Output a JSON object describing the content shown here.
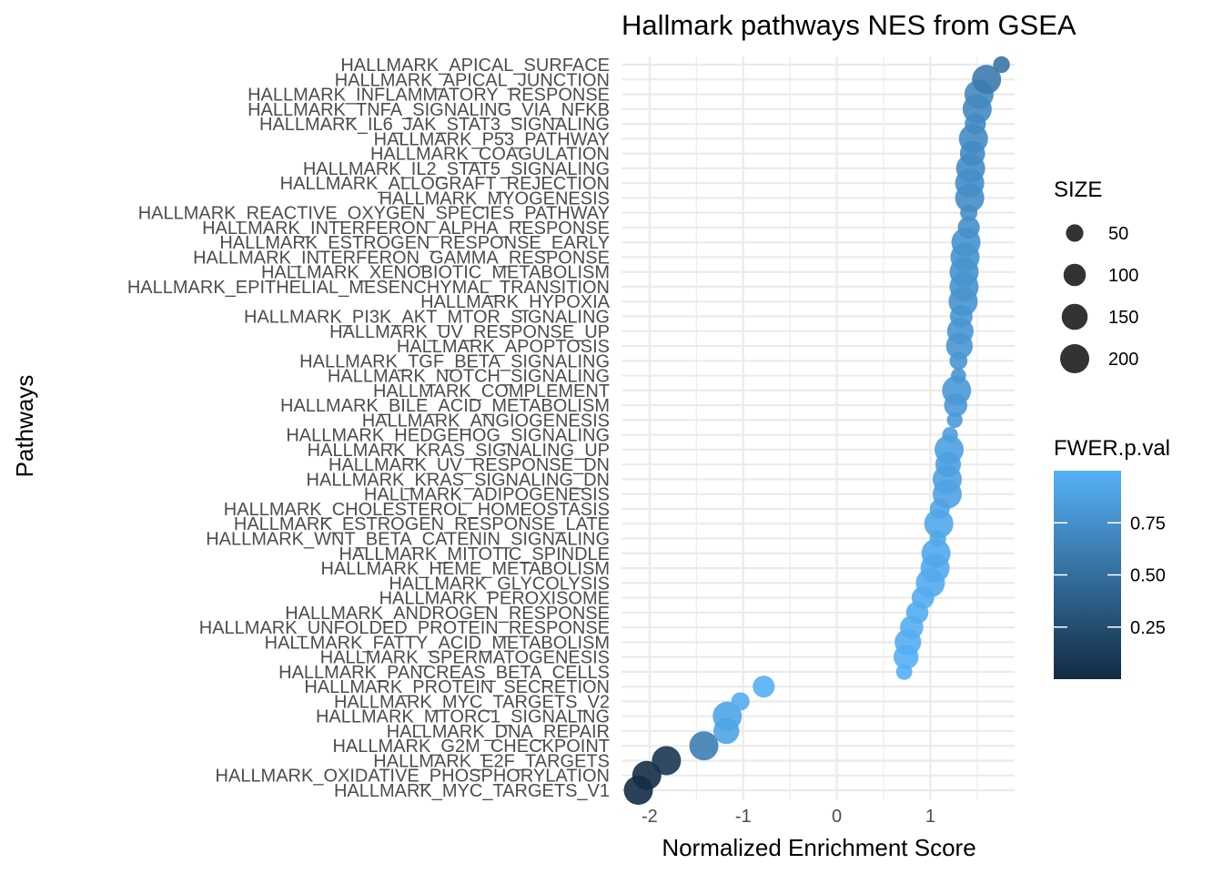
{
  "chart_data": {
    "type": "scatter",
    "title": "Hallmark pathways NES from GSEA",
    "xlabel": "Normalized Enrichment Score",
    "ylabel": "Pathways",
    "xlim": [
      -2.3,
      1.9
    ],
    "xticks": [
      -2,
      -1,
      0,
      1
    ],
    "grid": true,
    "legend_position": "right",
    "size_legend": {
      "title": "SIZE",
      "entries": [
        {
          "label": "50",
          "value": 50
        },
        {
          "label": "100",
          "value": 100
        },
        {
          "label": "150",
          "value": 150
        },
        {
          "label": "200",
          "value": 200
        }
      ]
    },
    "color_legend": {
      "title": "FWER.p.val",
      "range": [
        0,
        1
      ],
      "low_color": "#132B43",
      "high_color": "#56B1F7",
      "ticks": [
        {
          "label": "0.75",
          "value": 0.75
        },
        {
          "label": "0.50",
          "value": 0.5
        },
        {
          "label": "0.25",
          "value": 0.25
        }
      ]
    },
    "points": [
      {
        "pathway": "HALLMARK_APICAL_SURFACE",
        "nes": 1.76,
        "size": 44,
        "fwer": 0.55
      },
      {
        "pathway": "HALLMARK_APICAL_JUNCTION",
        "nes": 1.6,
        "size": 200,
        "fwer": 0.6
      },
      {
        "pathway": "HALLMARK_INFLAMMATORY_RESPONSE",
        "nes": 1.52,
        "size": 200,
        "fwer": 0.7
      },
      {
        "pathway": "HALLMARK_TNFA_SIGNALING_VIA_NFKB",
        "nes": 1.5,
        "size": 200,
        "fwer": 0.7
      },
      {
        "pathway": "HALLMARK_IL6_JAK_STAT3_SIGNALING",
        "nes": 1.48,
        "size": 87,
        "fwer": 0.72
      },
      {
        "pathway": "HALLMARK_P53_PATHWAY",
        "nes": 1.46,
        "size": 200,
        "fwer": 0.72
      },
      {
        "pathway": "HALLMARK_COAGULATION",
        "nes": 1.45,
        "size": 138,
        "fwer": 0.72
      },
      {
        "pathway": "HALLMARK_IL2_STAT5_SIGNALING",
        "nes": 1.43,
        "size": 199,
        "fwer": 0.74
      },
      {
        "pathway": "HALLMARK_ALLOGRAFT_REJECTION",
        "nes": 1.42,
        "size": 200,
        "fwer": 0.74
      },
      {
        "pathway": "HALLMARK_MYOGENESIS",
        "nes": 1.42,
        "size": 200,
        "fwer": 0.74
      },
      {
        "pathway": "HALLMARK_REACTIVE_OXYGEN_SPECIES_PATHWAY",
        "nes": 1.41,
        "size": 48,
        "fwer": 0.75
      },
      {
        "pathway": "HALLMARK_INTERFERON_ALPHA_RESPONSE",
        "nes": 1.41,
        "size": 97,
        "fwer": 0.75
      },
      {
        "pathway": "HALLMARK_ESTROGEN_RESPONSE_EARLY",
        "nes": 1.38,
        "size": 200,
        "fwer": 0.78
      },
      {
        "pathway": "HALLMARK_INTERFERON_GAMMA_RESPONSE",
        "nes": 1.37,
        "size": 200,
        "fwer": 0.78
      },
      {
        "pathway": "HALLMARK_XENOBIOTIC_METABOLISM",
        "nes": 1.36,
        "size": 200,
        "fwer": 0.78
      },
      {
        "pathway": "HALLMARK_EPITHELIAL_MESENCHYMAL_TRANSITION",
        "nes": 1.36,
        "size": 200,
        "fwer": 0.78
      },
      {
        "pathway": "HALLMARK_HYPOXIA",
        "nes": 1.35,
        "size": 200,
        "fwer": 0.78
      },
      {
        "pathway": "HALLMARK_PI3K_AKT_MTOR_SIGNALING",
        "nes": 1.33,
        "size": 105,
        "fwer": 0.8
      },
      {
        "pathway": "HALLMARK_UV_RESPONSE_UP",
        "nes": 1.32,
        "size": 158,
        "fwer": 0.8
      },
      {
        "pathway": "HALLMARK_APOPTOSIS",
        "nes": 1.31,
        "size": 161,
        "fwer": 0.8
      },
      {
        "pathway": "HALLMARK_TGF_BETA_SIGNALING",
        "nes": 1.3,
        "size": 54,
        "fwer": 0.8
      },
      {
        "pathway": "HALLMARK_NOTCH_SIGNALING",
        "nes": 1.3,
        "size": 32,
        "fwer": 0.8
      },
      {
        "pathway": "HALLMARK_COMPLEMENT",
        "nes": 1.28,
        "size": 200,
        "fwer": 0.82
      },
      {
        "pathway": "HALLMARK_BILE_ACID_METABOLISM",
        "nes": 1.27,
        "size": 112,
        "fwer": 0.82
      },
      {
        "pathway": "HALLMARK_ANGIOGENESIS",
        "nes": 1.26,
        "size": 36,
        "fwer": 0.83
      },
      {
        "pathway": "HALLMARK_HEDGEHOG_SIGNALING",
        "nes": 1.21,
        "size": 36,
        "fwer": 0.87
      },
      {
        "pathway": "HALLMARK_KRAS_SIGNALING_UP",
        "nes": 1.2,
        "size": 200,
        "fwer": 0.88
      },
      {
        "pathway": "HALLMARK_UV_RESPONSE_DN",
        "nes": 1.19,
        "size": 144,
        "fwer": 0.88
      },
      {
        "pathway": "HALLMARK_KRAS_SIGNALING_DN",
        "nes": 1.18,
        "size": 200,
        "fwer": 0.89
      },
      {
        "pathway": "HALLMARK_ADIPOGENESIS",
        "nes": 1.18,
        "size": 200,
        "fwer": 0.89
      },
      {
        "pathway": "HALLMARK_CHOLESTEROL_HOMEOSTASIS",
        "nes": 1.1,
        "size": 74,
        "fwer": 0.92
      },
      {
        "pathway": "HALLMARK_ESTROGEN_RESPONSE_LATE",
        "nes": 1.09,
        "size": 200,
        "fwer": 0.93
      },
      {
        "pathway": "HALLMARK_WNT_BETA_CATENIN_SIGNALING",
        "nes": 1.08,
        "size": 42,
        "fwer": 0.93
      },
      {
        "pathway": "HALLMARK_MITOTIC_SPINDLE",
        "nes": 1.06,
        "size": 199,
        "fwer": 0.94
      },
      {
        "pathway": "HALLMARK_HEME_METABOLISM",
        "nes": 1.05,
        "size": 200,
        "fwer": 0.95
      },
      {
        "pathway": "HALLMARK_GLYCOLYSIS",
        "nes": 1.0,
        "size": 200,
        "fwer": 0.96
      },
      {
        "pathway": "HALLMARK_PEROXISOME",
        "nes": 0.92,
        "size": 104,
        "fwer": 0.97
      },
      {
        "pathway": "HALLMARK_ANDROGEN_RESPONSE",
        "nes": 0.86,
        "size": 100,
        "fwer": 0.97
      },
      {
        "pathway": "HALLMARK_UNFOLDED_PROTEIN_RESPONSE",
        "nes": 0.8,
        "size": 113,
        "fwer": 0.98
      },
      {
        "pathway": "HALLMARK_FATTY_ACID_METABOLISM",
        "nes": 0.76,
        "size": 158,
        "fwer": 0.98
      },
      {
        "pathway": "HALLMARK_SPERMATOGENESIS",
        "nes": 0.74,
        "size": 135,
        "fwer": 0.99
      },
      {
        "pathway": "HALLMARK_PANCREAS_BETA_CELLS",
        "nes": 0.72,
        "size": 40,
        "fwer": 0.99
      },
      {
        "pathway": "HALLMARK_PROTEIN_SECRETION",
        "nes": -0.78,
        "size": 96,
        "fwer": 0.99
      },
      {
        "pathway": "HALLMARK_MYC_TARGETS_V2",
        "nes": -1.03,
        "size": 58,
        "fwer": 0.97
      },
      {
        "pathway": "HALLMARK_MTORC1_SIGNALING",
        "nes": -1.17,
        "size": 200,
        "fwer": 0.9
      },
      {
        "pathway": "HALLMARK_DNA_REPAIR",
        "nes": -1.18,
        "size": 149,
        "fwer": 0.9
      },
      {
        "pathway": "HALLMARK_G2M_CHECKPOINT",
        "nes": -1.42,
        "size": 200,
        "fwer": 0.62
      },
      {
        "pathway": "HALLMARK_E2F_TARGETS",
        "nes": -1.82,
        "size": 200,
        "fwer": 0.08
      },
      {
        "pathway": "HALLMARK_OXIDATIVE_PHOSPHORYLATION",
        "nes": -2.03,
        "size": 200,
        "fwer": 0.02
      },
      {
        "pathway": "HALLMARK_MYC_TARGETS_V1",
        "nes": -2.12,
        "size": 200,
        "fwer": 0.01
      }
    ]
  }
}
